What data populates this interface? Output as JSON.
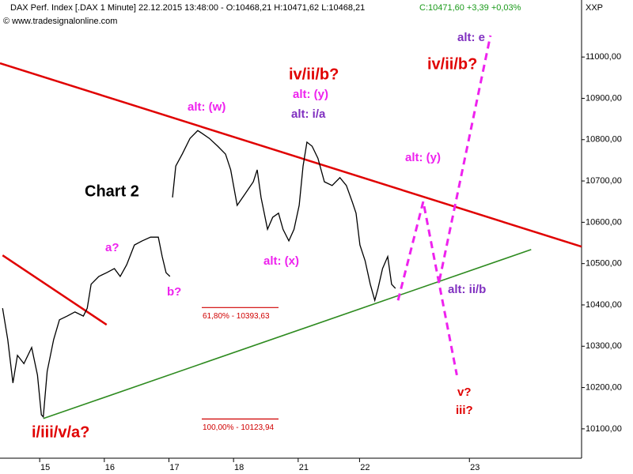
{
  "chart_data": {
    "type": "line",
    "title": "DAX Perf. Index [.DAX  1 Minute]  22.12.2015 13:48:00 - O:10468,21 H:10471,62 L:10468,21",
    "quote": "C:10471,60 +3,39 +0,03%",
    "source": "© www.tradesignalonline.com",
    "axis_code": "XXP",
    "x": [
      0.04,
      0.12,
      0.2,
      0.27,
      0.37,
      0.49,
      0.58,
      0.64,
      0.67,
      0.73,
      0.83,
      0.92,
      1.04,
      1.16,
      1.29,
      1.35,
      1.41,
      1.53,
      1.65,
      1.77,
      1.86,
      1.96,
      2.08,
      2.2,
      2.33,
      2.45,
      2.51,
      2.57,
      2.63,
      2.65,
      2.67,
      2.72,
      2.82,
      2.94,
      3.06,
      3.12,
      3.24,
      3.37,
      3.49,
      3.57,
      3.67,
      3.79,
      3.92,
      3.98,
      4.04,
      4.14,
      4.22,
      4.31,
      4.38,
      4.47,
      4.55,
      4.63,
      4.69,
      4.75,
      4.83,
      4.92,
      5.02,
      5.14,
      5.26,
      5.36,
      5.45,
      5.51,
      5.57,
      5.65,
      5.73,
      5.8,
      5.85,
      5.92,
      6.0,
      6.06,
      6.12
    ],
    "series": [
      {
        "color": "#000000",
        "values": [
          10392,
          10316,
          10211,
          10278,
          10258,
          10297,
          10230,
          10134,
          10129,
          10239,
          10316,
          10364,
          10373,
          10383,
          10373,
          10392,
          10450,
          10469,
          10478,
          10488,
          10469,
          10497,
          10545,
          10555,
          10564,
          10564,
          10517,
          10478,
          10469,
          null,
          10660,
          10736,
          10765,
          10803,
          10822,
          10816,
          10803,
          10784,
          10765,
          10727,
          10641,
          10668,
          10698,
          10727,
          10660,
          10583,
          10612,
          10622,
          10583,
          10555,
          10583,
          10641,
          10736,
          10794,
          10784,
          10755,
          10698,
          10689,
          10708,
          10689,
          10650,
          10622,
          10545,
          10507,
          10450,
          10411,
          10440,
          10488,
          10517,
          10450,
          10440
        ]
      }
    ],
    "trendlines": [
      {
        "color": "#e00000",
        "dashed": false,
        "x": [
          0,
          9
        ],
        "values": [
          10985,
          10541
        ]
      },
      {
        "color": "#e00000",
        "dashed": false,
        "x": [
          0.04,
          1.65
        ],
        "values": [
          10520,
          10352
        ]
      },
      {
        "color": "#2e8b20",
        "dashed": false,
        "x": [
          0.67,
          8.22
        ],
        "values": [
          10125,
          10534
        ]
      },
      {
        "color": "#ee22ee",
        "dashed": true,
        "x": [
          6.16,
          6.55,
          7.07
        ],
        "values": [
          10411,
          10650,
          10230
        ]
      },
      {
        "color": "#ee22ee",
        "dashed": true,
        "x": [
          6.8,
          7.59
        ],
        "values": [
          10459,
          11052
        ]
      }
    ],
    "levels": [
      {
        "value": 10393.63,
        "label": "61,80% - 10393,63"
      },
      {
        "value": 10123.94,
        "label": "100,00% - 10123,94"
      }
    ],
    "level_color": "#d00000",
    "annotations": [
      {
        "text": "Chart 2",
        "color": "#000000"
      },
      {
        "text": "iv/ii/b?",
        "color": "#e00000"
      },
      {
        "text": "alt: (y)",
        "color": "#ee22ee"
      },
      {
        "text": "alt: i/a",
        "color": "#8030c0"
      },
      {
        "text": "alt: (w)",
        "color": "#ee22ee"
      },
      {
        "text": "a?",
        "color": "#ee22ee"
      },
      {
        "text": "b?",
        "color": "#ee22ee"
      },
      {
        "text": "alt: (x)",
        "color": "#ee22ee"
      },
      {
        "text": "alt: (y)",
        "color": "#ee22ee"
      },
      {
        "text": "alt: e",
        "color": "#8030c0"
      },
      {
        "text": "iv/ii/b?",
        "color": "#e00000"
      },
      {
        "text": "alt: ii/b",
        "color": "#8030c0"
      },
      {
        "text": "v?",
        "color": "#e00000"
      },
      {
        "text": "iii?",
        "color": "#e00000"
      },
      {
        "text": "i/iii/v/a?",
        "color": "#e00000"
      }
    ],
    "xlim": [
      0,
      9
    ],
    "xticks": [
      {
        "value": 0.7,
        "label": "15"
      },
      {
        "value": 1.7,
        "label": "16"
      },
      {
        "value": 2.7,
        "label": "17"
      },
      {
        "value": 3.7,
        "label": "18"
      },
      {
        "value": 4.7,
        "label": "21"
      },
      {
        "value": 5.65,
        "label": "22"
      },
      {
        "value": 7.35,
        "label": "23"
      }
    ],
    "ylim": [
      10029,
      11138
    ],
    "yticks": [
      {
        "value": 10100,
        "label": "10100,00"
      },
      {
        "value": 10200,
        "label": "10200,00"
      },
      {
        "value": 10300,
        "label": "10300,00"
      },
      {
        "value": 10400,
        "label": "10400,00"
      },
      {
        "value": 10500,
        "label": "10500,00"
      },
      {
        "value": 10600,
        "label": "10600,00"
      },
      {
        "value": 10700,
        "label": "10700,00"
      },
      {
        "value": 10800,
        "label": "10800,00"
      },
      {
        "value": 10900,
        "label": "10900,00"
      },
      {
        "value": 11000,
        "label": "11000,00"
      }
    ]
  }
}
